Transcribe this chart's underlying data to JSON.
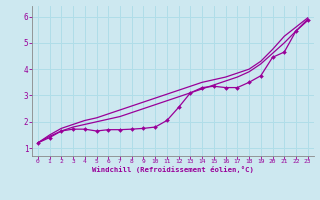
{
  "bg_color": "#cde8f0",
  "line_color": "#990099",
  "grid_color": "#b0dde8",
  "xlabel": "Windchill (Refroidissement éolien,°C)",
  "xlabel_color": "#990099",
  "xtick_color": "#990099",
  "ytick_color": "#990099",
  "xlim": [
    -0.5,
    23.5
  ],
  "ylim": [
    0.7,
    6.4
  ],
  "yticks": [
    1,
    2,
    3,
    4,
    5,
    6
  ],
  "xticks": [
    0,
    1,
    2,
    3,
    4,
    5,
    6,
    7,
    8,
    9,
    10,
    11,
    12,
    13,
    14,
    15,
    16,
    17,
    18,
    19,
    20,
    21,
    22,
    23
  ],
  "line_smooth1_x": [
    0,
    1,
    2,
    3,
    4,
    5,
    6,
    7,
    8,
    9,
    10,
    11,
    12,
    13,
    14,
    15,
    16,
    17,
    18,
    19,
    20,
    21,
    22,
    23
  ],
  "line_smooth1_y": [
    1.2,
    1.5,
    1.75,
    1.9,
    2.05,
    2.15,
    2.3,
    2.45,
    2.6,
    2.75,
    2.9,
    3.05,
    3.2,
    3.35,
    3.5,
    3.6,
    3.7,
    3.85,
    4.0,
    4.3,
    4.75,
    5.25,
    5.6,
    5.95
  ],
  "line_smooth2_x": [
    0,
    1,
    2,
    3,
    4,
    5,
    6,
    7,
    8,
    9,
    10,
    11,
    12,
    13,
    14,
    15,
    16,
    17,
    18,
    19,
    20,
    21,
    22,
    23
  ],
  "line_smooth2_y": [
    1.2,
    1.45,
    1.65,
    1.8,
    1.9,
    2.0,
    2.1,
    2.2,
    2.35,
    2.5,
    2.65,
    2.8,
    2.95,
    3.1,
    3.25,
    3.4,
    3.55,
    3.7,
    3.9,
    4.2,
    4.6,
    5.0,
    5.45,
    5.9
  ],
  "line_markers_x": [
    0,
    1,
    2,
    3,
    4,
    5,
    6,
    7,
    8,
    9,
    10,
    11,
    12,
    13,
    14,
    15,
    16,
    17,
    18,
    19,
    20,
    21,
    22,
    23
  ],
  "line_markers_y": [
    1.2,
    1.4,
    1.65,
    1.72,
    1.72,
    1.65,
    1.7,
    1.7,
    1.72,
    1.75,
    1.8,
    2.05,
    2.55,
    3.1,
    3.3,
    3.35,
    3.3,
    3.3,
    3.5,
    3.75,
    4.45,
    4.65,
    5.45,
    5.85
  ]
}
